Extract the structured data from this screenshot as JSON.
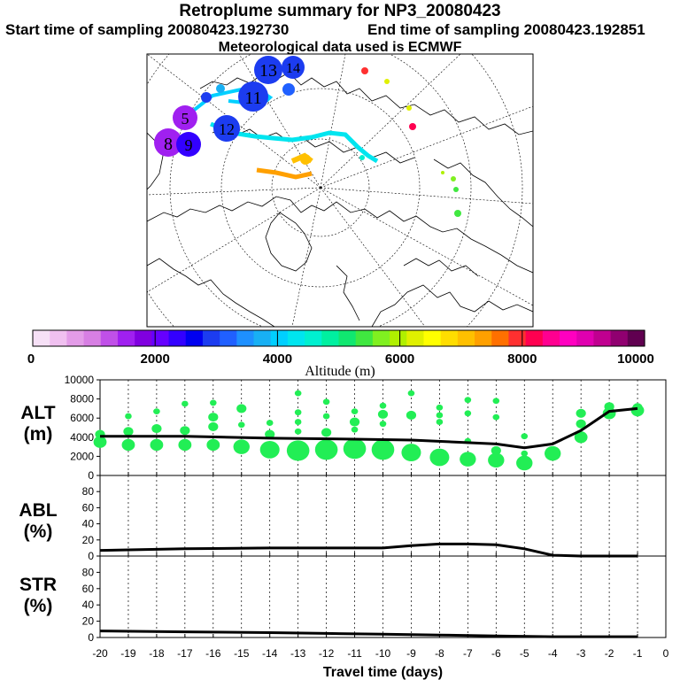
{
  "header": {
    "title": "Retroplume summary for NP3_20080423",
    "start": "Start time of sampling 20080423.192730",
    "end": "End time of sampling 20080423.192851",
    "met": "Meteorological data used is ECMWF"
  },
  "map": {
    "large_labels": [
      "13",
      "14",
      "11",
      "12",
      "5",
      "8",
      "9"
    ],
    "colorbar_label": "Altitude (m)",
    "colorbar_ticks": [
      "0",
      "2000",
      "4000",
      "6000",
      "8000",
      "10000"
    ],
    "colors": [
      "#f6e0f6",
      "#f0c0f0",
      "#e39ce8",
      "#d77fe3",
      "#c050e8",
      "#a020f0",
      "#8000e0",
      "#6600ff",
      "#3300ff",
      "#0000f0",
      "#1c3cf0",
      "#2060ff",
      "#1e90ff",
      "#18b0f4",
      "#00cfff",
      "#00e5ef",
      "#00f0d0",
      "#00f0a0",
      "#10e870",
      "#40e840",
      "#80f020",
      "#b0f000",
      "#e0f000",
      "#ffff00",
      "#ffdd00",
      "#ffc000",
      "#ffa000",
      "#ff7000",
      "#ff3030",
      "#ff0050",
      "#ff0090",
      "#ff00c0",
      "#e000b0",
      "#c00090",
      "#900070",
      "#600050"
    ]
  },
  "panels": {
    "alt": {
      "label_line1": "ALT",
      "label_line2": "(m)"
    },
    "abl": {
      "label_line1": "ABL",
      "label_line2": "(%)"
    },
    "str": {
      "label_line1": "STR",
      "label_line2": "(%)"
    }
  },
  "chart_data": [
    {
      "type": "scatter",
      "title": "ALT (m)",
      "ylim": [
        0,
        10000
      ],
      "yticks": [
        "0",
        "2000",
        "4000",
        "6000",
        "8000",
        "10000"
      ],
      "xlim": [
        -20,
        0
      ],
      "line": {
        "x": [
          -20,
          -17,
          -14,
          -11,
          -9,
          -6,
          -5,
          -4,
          -3,
          -2,
          -1
        ],
        "y": [
          4100,
          4100,
          3900,
          3800,
          3700,
          3300,
          2900,
          3300,
          4700,
          6700,
          7000
        ]
      },
      "points": [
        {
          "x": -20,
          "y": 3500,
          "s": 3
        },
        {
          "x": -20,
          "y": 4300,
          "s": 2
        },
        {
          "x": -19,
          "y": 3200,
          "s": 3
        },
        {
          "x": -19,
          "y": 4600,
          "s": 2
        },
        {
          "x": -19,
          "y": 6200,
          "s": 1
        },
        {
          "x": -18,
          "y": 3200,
          "s": 3
        },
        {
          "x": -18,
          "y": 4900,
          "s": 2
        },
        {
          "x": -18,
          "y": 6700,
          "s": 1
        },
        {
          "x": -17,
          "y": 3200,
          "s": 3
        },
        {
          "x": -17,
          "y": 4700,
          "s": 2
        },
        {
          "x": -17,
          "y": 7500,
          "s": 1
        },
        {
          "x": -16,
          "y": 3200,
          "s": 3
        },
        {
          "x": -16,
          "y": 5100,
          "s": 2
        },
        {
          "x": -16,
          "y": 6100,
          "s": 2
        },
        {
          "x": -16,
          "y": 7600,
          "s": 1
        },
        {
          "x": -15,
          "y": 3000,
          "s": 4
        },
        {
          "x": -15,
          "y": 5300,
          "s": 1
        },
        {
          "x": -15,
          "y": 7000,
          "s": 2
        },
        {
          "x": -14,
          "y": 2700,
          "s": 5
        },
        {
          "x": -14,
          "y": 4300,
          "s": 2
        },
        {
          "x": -14,
          "y": 5500,
          "s": 1
        },
        {
          "x": -13,
          "y": 2600,
          "s": 6
        },
        {
          "x": -13,
          "y": 4600,
          "s": 1
        },
        {
          "x": -13,
          "y": 5600,
          "s": 1
        },
        {
          "x": -13,
          "y": 6600,
          "s": 1
        },
        {
          "x": -13,
          "y": 8600,
          "s": 1
        },
        {
          "x": -12,
          "y": 2700,
          "s": 6
        },
        {
          "x": -12,
          "y": 4500,
          "s": 2
        },
        {
          "x": -12,
          "y": 6200,
          "s": 1
        },
        {
          "x": -12,
          "y": 7700,
          "s": 1
        },
        {
          "x": -11,
          "y": 2800,
          "s": 6
        },
        {
          "x": -11,
          "y": 4800,
          "s": 1
        },
        {
          "x": -11,
          "y": 5600,
          "s": 2
        },
        {
          "x": -11,
          "y": 6700,
          "s": 1
        },
        {
          "x": -10,
          "y": 2700,
          "s": 6
        },
        {
          "x": -10,
          "y": 5400,
          "s": 1
        },
        {
          "x": -10,
          "y": 6400,
          "s": 2
        },
        {
          "x": -10,
          "y": 7300,
          "s": 1
        },
        {
          "x": -9,
          "y": 2400,
          "s": 5
        },
        {
          "x": -9,
          "y": 6300,
          "s": 2
        },
        {
          "x": -9,
          "y": 8600,
          "s": 1
        },
        {
          "x": -8,
          "y": 1900,
          "s": 5
        },
        {
          "x": -8,
          "y": 5600,
          "s": 1
        },
        {
          "x": -8,
          "y": 6300,
          "s": 1
        },
        {
          "x": -8,
          "y": 7100,
          "s": 1
        },
        {
          "x": -7,
          "y": 1700,
          "s": 4
        },
        {
          "x": -7,
          "y": 3600,
          "s": 1
        },
        {
          "x": -7,
          "y": 6500,
          "s": 1
        },
        {
          "x": -7,
          "y": 7900,
          "s": 1
        },
        {
          "x": -6,
          "y": 1600,
          "s": 4
        },
        {
          "x": -6,
          "y": 2600,
          "s": 2
        },
        {
          "x": -6,
          "y": 6100,
          "s": 1
        },
        {
          "x": -6,
          "y": 7800,
          "s": 1
        },
        {
          "x": -5,
          "y": 1300,
          "s": 4
        },
        {
          "x": -5,
          "y": 2300,
          "s": 1
        },
        {
          "x": -5,
          "y": 4100,
          "s": 1
        },
        {
          "x": -4,
          "y": 2300,
          "s": 4
        },
        {
          "x": -3,
          "y": 4000,
          "s": 3
        },
        {
          "x": -3,
          "y": 5400,
          "s": 2
        },
        {
          "x": -3,
          "y": 6500,
          "s": 2
        },
        {
          "x": -2,
          "y": 6500,
          "s": 3
        },
        {
          "x": -2,
          "y": 7200,
          "s": 2
        },
        {
          "x": -1,
          "y": 6800,
          "s": 3
        },
        {
          "x": -1,
          "y": 7100,
          "s": 2
        }
      ]
    },
    {
      "type": "line",
      "title": "ABL (%)",
      "ylim": [
        0,
        100
      ],
      "yticks": [
        "0",
        "20",
        "40",
        "60",
        "80"
      ],
      "x": [
        -20,
        -17,
        -14,
        -12,
        -10,
        -9,
        -8,
        -7,
        -6,
        -5,
        -4,
        -3,
        -2,
        -1
      ],
      "y": [
        7,
        9,
        10,
        10,
        10,
        13,
        15,
        15,
        14,
        9,
        1,
        0,
        0,
        0
      ]
    },
    {
      "type": "line",
      "title": "STR (%)",
      "ylim": [
        0,
        100
      ],
      "yticks": [
        "0",
        "20",
        "40",
        "60",
        "80"
      ],
      "x": [
        -20,
        -17,
        -14,
        -12,
        -10,
        -8,
        -6,
        -4,
        -2,
        -1
      ],
      "y": [
        8,
        7,
        6,
        5,
        4,
        3,
        2,
        1,
        1,
        1
      ],
      "xlabel": "Travel time (days)",
      "xticks": [
        "-20",
        "-19",
        "-18",
        "-17",
        "-16",
        "-15",
        "-14",
        "-13",
        "-12",
        "-11",
        "-10",
        "-9",
        "-8",
        "-7",
        "-6",
        "-5",
        "-4",
        "-3",
        "-2",
        "-1",
        "0"
      ]
    }
  ]
}
